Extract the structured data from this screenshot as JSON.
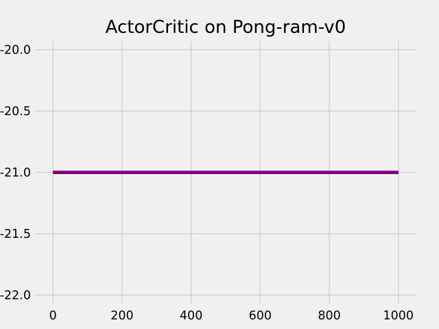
{
  "chart_data": {
    "type": "line",
    "title": "ActorCritic on Pong-ram-v0",
    "xlabel": "",
    "ylabel": "",
    "xlim": [
      -50,
      1050
    ],
    "ylim": [
      -22.07,
      -19.93
    ],
    "xticks": [
      0,
      200,
      400,
      600,
      800,
      1000
    ],
    "xtick_labels": [
      "0",
      "200",
      "400",
      "600",
      "800",
      "1000"
    ],
    "yticks": [
      -20.0,
      -20.5,
      -21.0,
      -21.5,
      -22.0
    ],
    "ytick_labels": [
      "-20.0",
      "-20.5",
      "-21.0",
      "-21.5",
      "-22.0"
    ],
    "grid": true,
    "background": "#f0f0f0",
    "series": [
      {
        "color": "#800080",
        "x": [
          0,
          1000
        ],
        "y": [
          -21.0,
          -21.0
        ]
      }
    ]
  }
}
